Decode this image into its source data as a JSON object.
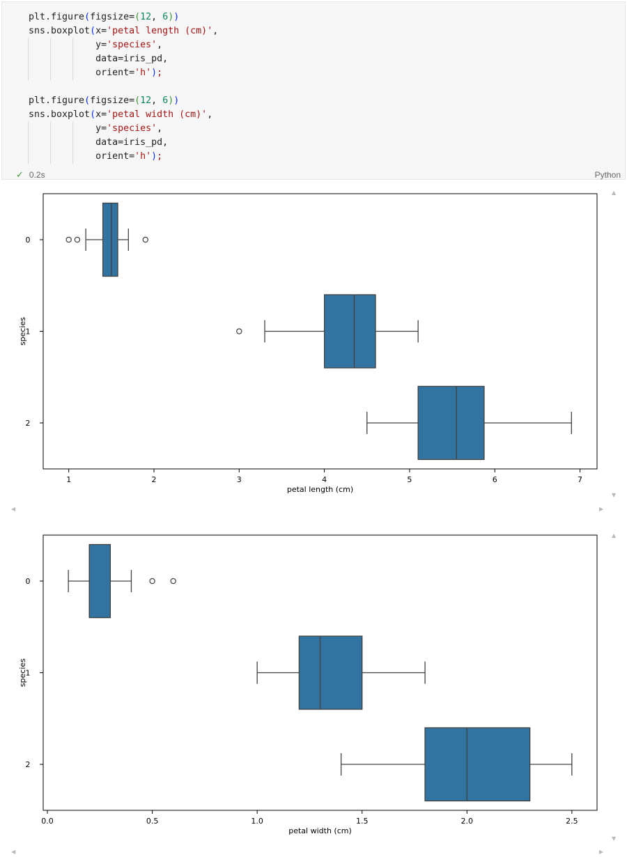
{
  "cell": {
    "code_lines": [
      [
        {
          "t": "plt.figure",
          "c": "fn"
        },
        {
          "t": "(",
          "c": "p1"
        },
        {
          "t": "figsize",
          "c": "kw"
        },
        {
          "t": "=",
          "c": "kw"
        },
        {
          "t": "(",
          "c": "p2"
        },
        {
          "t": "12",
          "c": "num"
        },
        {
          "t": ", ",
          "c": "kw"
        },
        {
          "t": "6",
          "c": "num"
        },
        {
          "t": ")",
          "c": "p2"
        },
        {
          "t": ")",
          "c": "p1"
        }
      ],
      [
        {
          "t": "sns.boxplot",
          "c": "fn"
        },
        {
          "t": "(",
          "c": "p1"
        },
        {
          "t": "x=",
          "c": "kw"
        },
        {
          "t": "'petal length (cm)'",
          "c": "str"
        },
        {
          "t": ",",
          "c": "kw"
        }
      ],
      [
        {
          "t": "            y=",
          "c": "kw"
        },
        {
          "t": "'species'",
          "c": "str"
        },
        {
          "t": ",",
          "c": "kw"
        }
      ],
      [
        {
          "t": "            data=iris_pd,",
          "c": "kw"
        }
      ],
      [
        {
          "t": "            orient=",
          "c": "kw"
        },
        {
          "t": "'h'",
          "c": "str"
        },
        {
          "t": ")",
          "c": "p1"
        },
        {
          "t": ";",
          "c": "str"
        }
      ],
      [],
      [
        {
          "t": "plt.figure",
          "c": "fn"
        },
        {
          "t": "(",
          "c": "p1"
        },
        {
          "t": "figsize",
          "c": "kw"
        },
        {
          "t": "=",
          "c": "kw"
        },
        {
          "t": "(",
          "c": "p2"
        },
        {
          "t": "12",
          "c": "num"
        },
        {
          "t": ", ",
          "c": "kw"
        },
        {
          "t": "6",
          "c": "num"
        },
        {
          "t": ")",
          "c": "p2"
        },
        {
          "t": ")",
          "c": "p1"
        }
      ],
      [
        {
          "t": "sns.boxplot",
          "c": "fn"
        },
        {
          "t": "(",
          "c": "p1"
        },
        {
          "t": "x=",
          "c": "kw"
        },
        {
          "t": "'petal width (cm)'",
          "c": "str"
        },
        {
          "t": ",",
          "c": "kw"
        }
      ],
      [
        {
          "t": "            y=",
          "c": "kw"
        },
        {
          "t": "'species'",
          "c": "str"
        },
        {
          "t": ",",
          "c": "kw"
        }
      ],
      [
        {
          "t": "            data=iris_pd,",
          "c": "kw"
        }
      ],
      [
        {
          "t": "            orient=",
          "c": "kw"
        },
        {
          "t": "'h'",
          "c": "str"
        },
        {
          "t": ")",
          "c": "p1"
        },
        {
          "t": ";",
          "c": "str"
        }
      ]
    ],
    "status_icon": "check-icon",
    "exec_time": "0.2s",
    "language": "Python"
  },
  "colors": {
    "box_fill": "#3274a1",
    "line": "#404040",
    "status_ok": "#3c9a3c"
  },
  "chart_data": [
    {
      "type": "box",
      "orient": "h",
      "xlabel": "petal length (cm)",
      "ylabel": "species",
      "xlim": [
        0.7,
        7.2
      ],
      "xticks": [
        1,
        2,
        3,
        4,
        5,
        6,
        7
      ],
      "xtick_labels": [
        "1",
        "2",
        "3",
        "4",
        "5",
        "6",
        "7"
      ],
      "categories": [
        "0",
        "1",
        "2"
      ],
      "boxes": [
        {
          "category": "0",
          "whislo": 1.2,
          "q1": 1.4,
          "med": 1.5,
          "q3": 1.575,
          "whishi": 1.7,
          "fliers": [
            1.0,
            1.1,
            1.9
          ]
        },
        {
          "category": "1",
          "whislo": 3.3,
          "q1": 4.0,
          "med": 4.35,
          "q3": 4.6,
          "whishi": 5.1,
          "fliers": [
            3.0
          ]
        },
        {
          "category": "2",
          "whislo": 4.5,
          "q1": 5.1,
          "med": 5.55,
          "q3": 5.875,
          "whishi": 6.9,
          "fliers": []
        }
      ]
    },
    {
      "type": "box",
      "orient": "h",
      "xlabel": "petal width (cm)",
      "ylabel": "species",
      "xlim": [
        -0.02,
        2.62
      ],
      "xticks": [
        0.0,
        0.5,
        1.0,
        1.5,
        2.0,
        2.5
      ],
      "xtick_labels": [
        "0.0",
        "0.5",
        "1.0",
        "1.5",
        "2.0",
        "2.5"
      ],
      "categories": [
        "0",
        "1",
        "2"
      ],
      "boxes": [
        {
          "category": "0",
          "whislo": 0.1,
          "q1": 0.2,
          "med": 0.2,
          "q3": 0.3,
          "whishi": 0.4,
          "fliers": [
            0.5,
            0.6
          ]
        },
        {
          "category": "1",
          "whislo": 1.0,
          "q1": 1.2,
          "med": 1.3,
          "q3": 1.5,
          "whishi": 1.8,
          "fliers": []
        },
        {
          "category": "2",
          "whislo": 1.4,
          "q1": 1.8,
          "med": 2.0,
          "q3": 2.3,
          "whishi": 2.5,
          "fliers": []
        }
      ]
    }
  ]
}
